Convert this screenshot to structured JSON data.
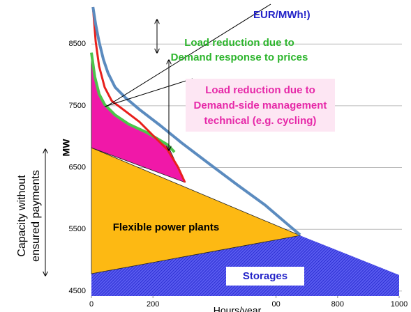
{
  "chart_data": {
    "type": "area",
    "xlabel": "Hours/year",
    "ylabel": "MW",
    "side_label": [
      "Capacity without",
      "ensured payments"
    ],
    "xlim": [
      0,
      1000
    ],
    "ylim": [
      4420,
      9100
    ],
    "xticks": [
      0,
      200,
      {
        "value": 600,
        "label": "00"
      },
      800,
      1000
    ],
    "yticks": [
      4500,
      5500,
      6500,
      7500,
      8500
    ],
    "grid": true,
    "series": [
      {
        "style": "area",
        "color": "#2b2fe0",
        "hatch": true,
        "x": [
          0,
          678,
          1000
        ],
        "values": [
          4780,
          5400,
          4760
        ]
      },
      {
        "style": "polygon",
        "color": "#fdb913",
        "x": [
          0,
          678,
          0
        ],
        "values": [
          6820,
          5400,
          4780
        ]
      },
      {
        "style": "polygon",
        "color": "#f018a8",
        "x": [
          0,
          11,
          25,
          43,
          77,
          122,
          179,
          247,
          281,
          304,
          0
        ],
        "values": [
          8360,
          7970,
          7690,
          7520,
          7350,
          7200,
          7070,
          6870,
          6510,
          6260,
          6820
        ]
      },
      {
        "style": "line",
        "color": "#4cc44a",
        "width": 4,
        "x": [
          0,
          11,
          25,
          43,
          77,
          122,
          179,
          247,
          270
        ],
        "values": [
          8360,
          7970,
          7690,
          7520,
          7350,
          7200,
          7070,
          6870,
          6750
        ]
      },
      {
        "style": "line",
        "color": "#e8201c",
        "width": 3,
        "x": [
          5,
          14,
          25,
          43,
          66,
          111,
          156,
          202,
          247,
          281,
          304
        ],
        "values": [
          9100,
          8535,
          8140,
          7800,
          7580,
          7410,
          7240,
          7010,
          6790,
          6510,
          6260
        ]
      },
      {
        "style": "line",
        "color": "#5b8bbf",
        "width": 4,
        "x": [
          5,
          14,
          25,
          39,
          54,
          77,
          111,
          156,
          224,
          293,
          383,
          474,
          565,
          633,
          678
        ],
        "values": [
          9100,
          8815,
          8535,
          8250,
          8030,
          7800,
          7630,
          7440,
          7180,
          6900,
          6560,
          6220,
          5890,
          5600,
          5410
        ]
      }
    ],
    "annotations": {
      "price": "EUR/MWh!)",
      "demand_response": [
        "Load reduction due to",
        "Demand response to prices"
      ],
      "dsm": [
        "Load reduction due to",
        "Demand-side management",
        "technical (e.g. cycling)"
      ],
      "flexible": "Flexible power plants",
      "storages": "Storages"
    }
  }
}
